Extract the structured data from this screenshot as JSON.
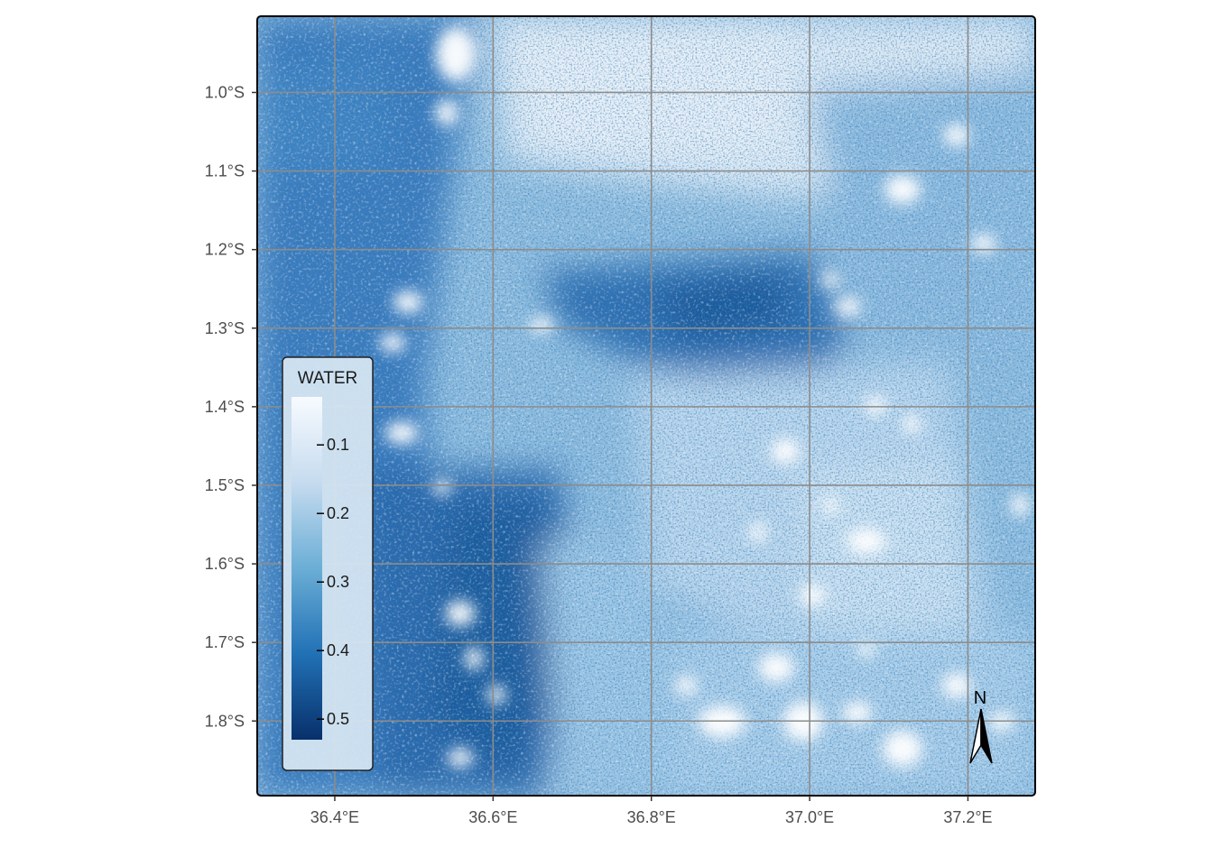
{
  "map": {
    "x_axis": {
      "ticks": [
        {
          "value": 36.4,
          "label": "36.4°E"
        },
        {
          "value": 36.6,
          "label": "36.6°E"
        },
        {
          "value": 36.8,
          "label": "36.8°E"
        },
        {
          "value": 37.0,
          "label": "37.0°E"
        },
        {
          "value": 37.2,
          "label": "37.2°E"
        }
      ],
      "range": [
        36.302,
        37.285
      ]
    },
    "y_axis": {
      "ticks": [
        {
          "value": -1.0,
          "label": "1.0°S"
        },
        {
          "value": -1.1,
          "label": "1.1°S"
        },
        {
          "value": -1.2,
          "label": "1.2°S"
        },
        {
          "value": -1.3,
          "label": "1.3°S"
        },
        {
          "value": -1.4,
          "label": "1.4°S"
        },
        {
          "value": -1.5,
          "label": "1.5°S"
        },
        {
          "value": -1.6,
          "label": "1.6°S"
        },
        {
          "value": -1.7,
          "label": "1.7°S"
        },
        {
          "value": -1.8,
          "label": "1.8°S"
        }
      ],
      "range": [
        -1.895,
        -0.903
      ]
    },
    "legend": {
      "title": "WATER",
      "placement": "bottom-left",
      "range": [
        0.03,
        0.53
      ],
      "ticks": [
        {
          "value": 0.1,
          "label": "0.1"
        },
        {
          "value": 0.2,
          "label": "0.2"
        },
        {
          "value": 0.3,
          "label": "0.3"
        },
        {
          "value": 0.4,
          "label": "0.4"
        },
        {
          "value": 0.5,
          "label": "0.5"
        }
      ],
      "colors": [
        "#f7fbff",
        "#c6dbef",
        "#6baed6",
        "#2171b5",
        "#08306b"
      ]
    },
    "north_arrow": {
      "label": "N",
      "placement": "bottom-right"
    },
    "grid": true,
    "colors": {
      "grid": "#8c8c8c",
      "panel_border": "#000000",
      "no_data": "#ffffff"
    }
  }
}
